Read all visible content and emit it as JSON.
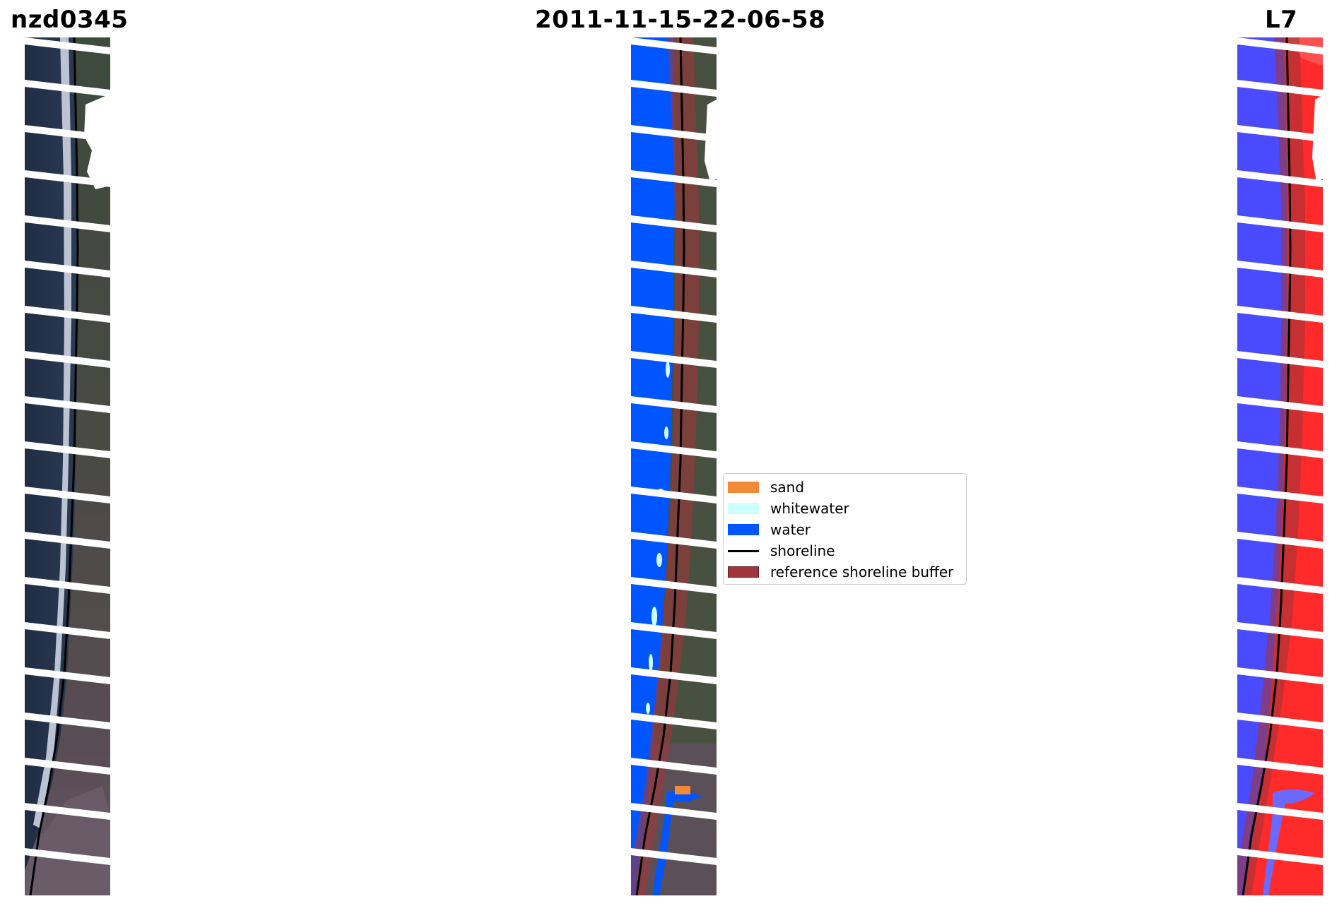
{
  "titles": {
    "left": "nzd0345",
    "center": "2011-11-15-22-06-58",
    "right": "L7"
  },
  "panels": [
    {
      "id": "rgb-image",
      "description_key": "true-colour RGB"
    },
    {
      "id": "classified-image",
      "description_key": "classified"
    },
    {
      "id": "index-image",
      "description_key": "MNDWI"
    }
  ],
  "legend": {
    "items": [
      {
        "label": "sand",
        "color": "#f28a3a",
        "kind": "patch"
      },
      {
        "label": "whitewater",
        "color": "#ccffff",
        "kind": "patch"
      },
      {
        "label": "water",
        "color": "#0055ff",
        "kind": "patch"
      },
      {
        "label": "shoreline",
        "color": "#000000",
        "kind": "line"
      },
      {
        "label": "reference shoreline buffer",
        "color": "#a0363b",
        "kind": "patch"
      }
    ]
  },
  "colors": {
    "water": "#0055ff",
    "whitewater": "#ccffff",
    "sand": "#f28a3a",
    "shoreline": "#000000",
    "buffer": "#a0363b",
    "index_water": "#4a4aff",
    "index_land": "#ff2a2a"
  }
}
